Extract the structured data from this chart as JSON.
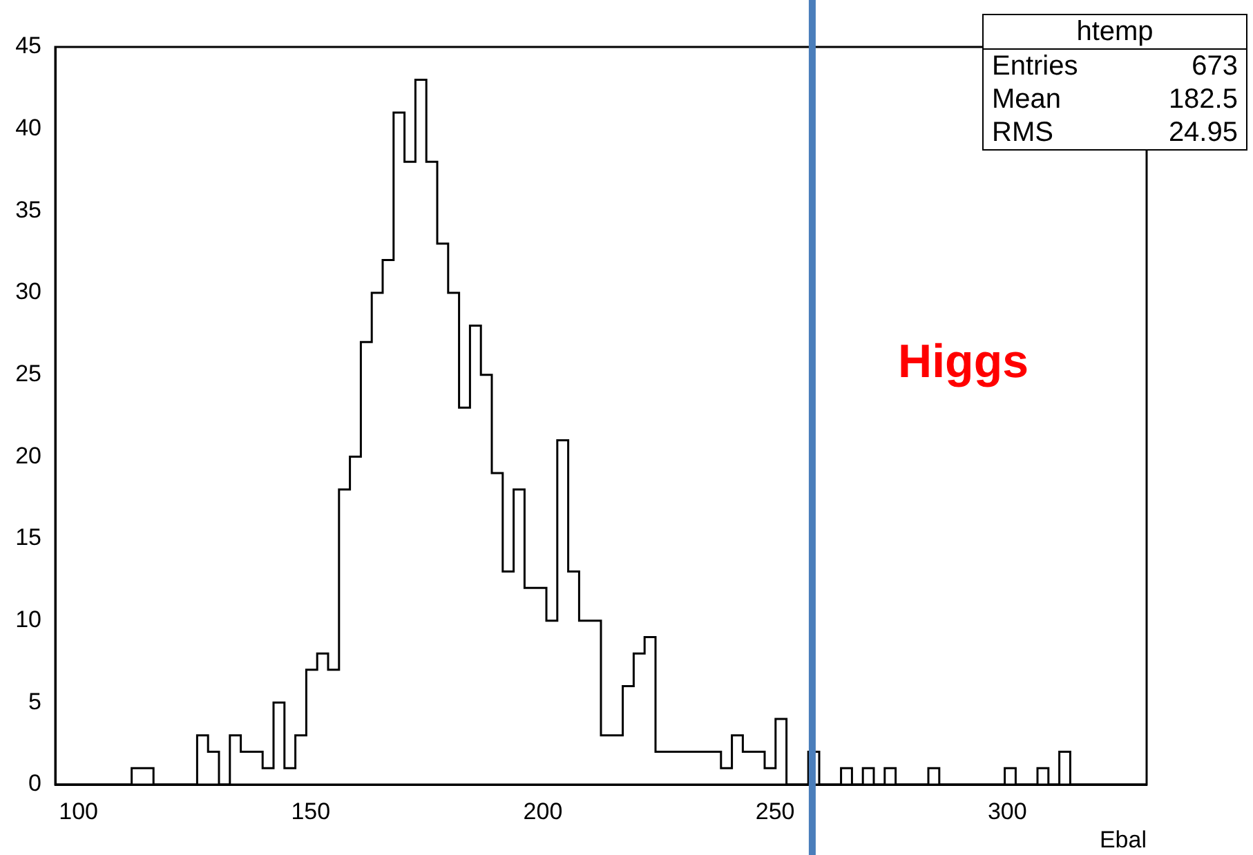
{
  "chart_data": {
    "type": "histogram",
    "xlabel": "Ebal",
    "bins": [
      95,
      97.35,
      99.7,
      102.05,
      104.4,
      106.75,
      109.1,
      111.45,
      113.8,
      116.15,
      118.5,
      120.85,
      123.2,
      125.55,
      127.9,
      130.25,
      132.6,
      134.95,
      137.3,
      139.65,
      142,
      144.35,
      146.7,
      149.05,
      151.4,
      153.75,
      156.1,
      158.45,
      160.8,
      163.15,
      165.5,
      167.85,
      170.2,
      172.55,
      174.9,
      177.25,
      179.6,
      181.95,
      184.3,
      186.65,
      189,
      191.35,
      193.7,
      196.05,
      198.4,
      200.75,
      203.1,
      205.45,
      207.8,
      210.15,
      212.5,
      214.85,
      217.2,
      219.55,
      221.9,
      224.25,
      226.6,
      228.95,
      231.3,
      233.65,
      236,
      238.35,
      240.7,
      243.05,
      245.4,
      247.75,
      250.1,
      252.45,
      254.8,
      257.15,
      259.5,
      261.85,
      264.2,
      266.55,
      268.9,
      271.25,
      273.6,
      275.95,
      278.3,
      280.65,
      283,
      285.35,
      287.7,
      290.05,
      292.4,
      294.75,
      297.1,
      299.45,
      301.8,
      304.15,
      306.5,
      308.85,
      311.2,
      313.55,
      315.9,
      318.25,
      320.6,
      322.95,
      325.3,
      327.65,
      330
    ],
    "values": [
      0,
      0,
      0,
      0,
      0,
      0,
      0,
      1,
      1,
      0,
      0,
      0,
      0,
      3,
      2,
      0,
      3,
      2,
      2,
      1,
      5,
      1,
      3,
      7,
      8,
      7,
      18,
      20,
      27,
      30,
      32,
      41,
      38,
      43,
      38,
      33,
      30,
      23,
      28,
      25,
      19,
      13,
      18,
      12,
      12,
      10,
      21,
      13,
      10,
      10,
      3,
      3,
      6,
      8,
      9,
      2,
      2,
      2,
      2,
      2,
      2,
      1,
      3,
      2,
      2,
      1,
      4,
      0,
      0,
      2,
      0,
      0,
      1,
      0,
      1,
      0,
      1,
      0,
      0,
      0,
      1,
      0,
      0,
      0,
      0,
      0,
      0,
      1,
      0,
      0,
      1,
      0,
      2,
      0,
      0,
      0,
      0,
      0,
      0,
      0
    ],
    "color": "#000000",
    "xlim": [
      95,
      330
    ],
    "xticks": [
      100,
      150,
      200,
      250,
      300
    ],
    "ylim": [
      0,
      45
    ],
    "yticks": [
      0,
      5,
      10,
      15,
      20,
      25,
      30,
      35,
      40,
      45
    ],
    "grid": false,
    "legend": false,
    "ref_lines": [
      {
        "axis": "x",
        "value": 258,
        "color": "#4a7ebb"
      }
    ],
    "annotations": [
      "Higgs",
      "htemp",
      "Entries",
      "673",
      "Mean",
      "182.5",
      "RMS",
      "24.95"
    ]
  }
}
